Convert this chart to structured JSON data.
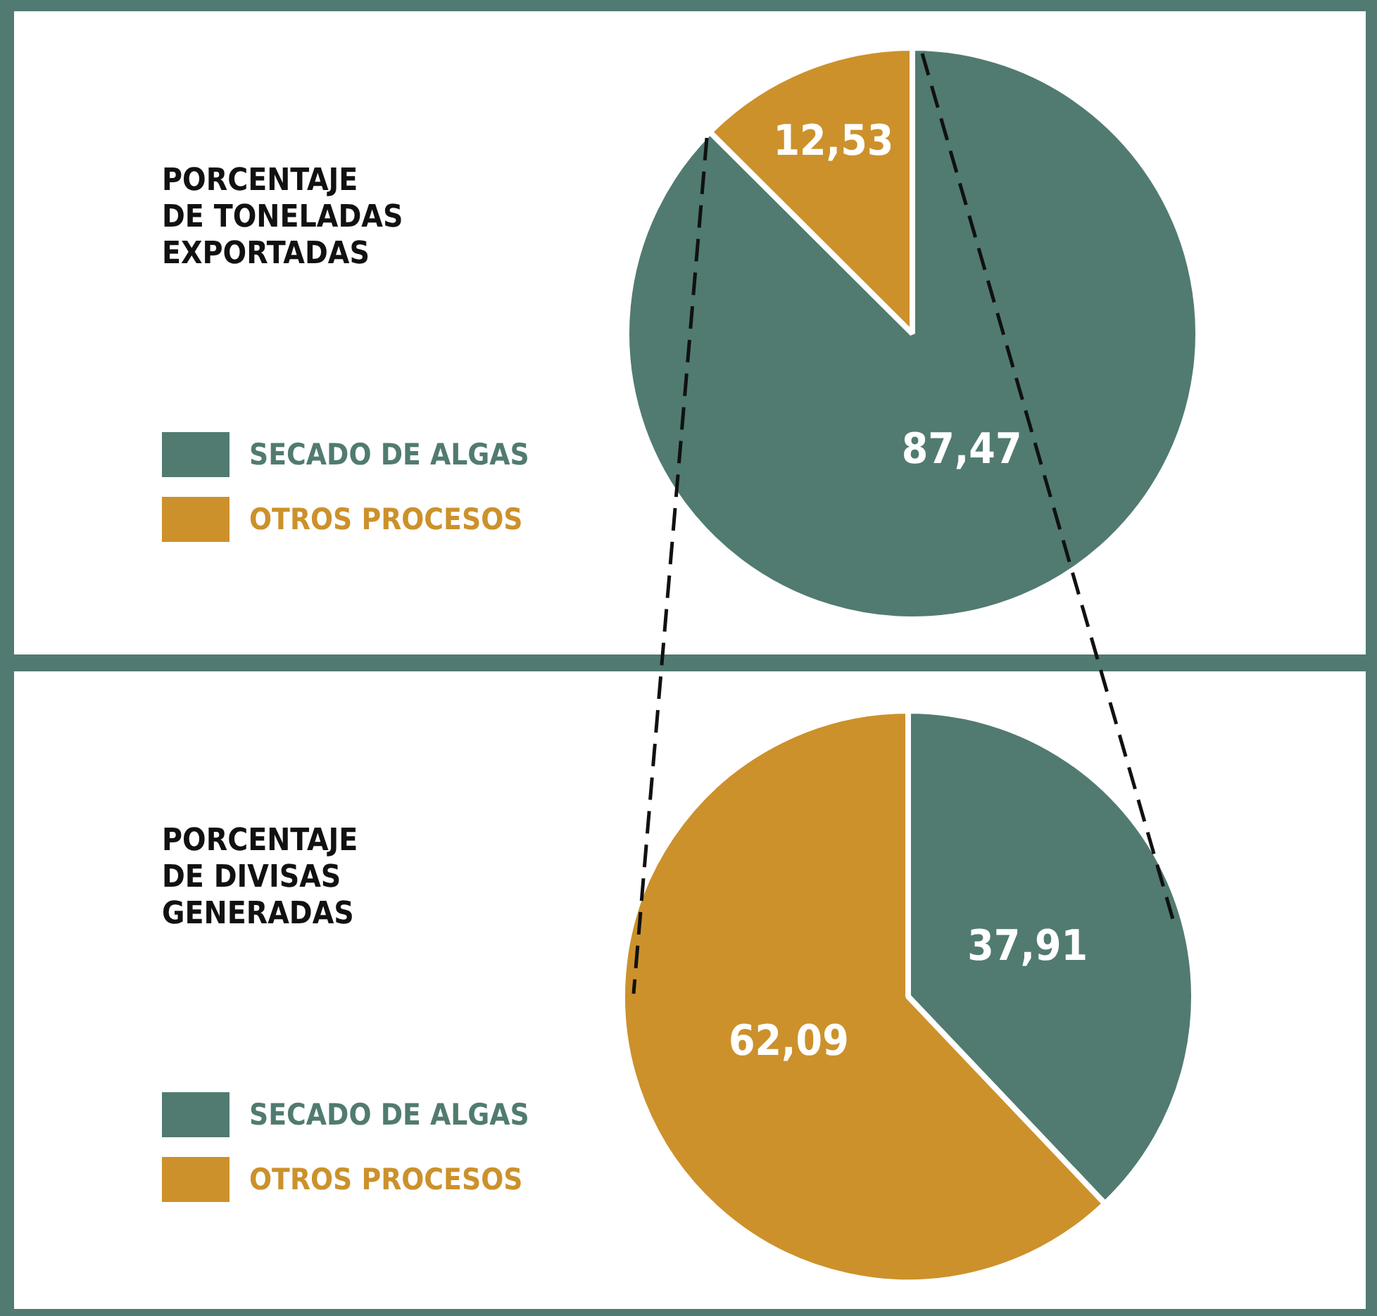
{
  "chart_data": [
    {
      "type": "pie",
      "title": "PORCENTAJE\nDE TONELADAS\nEXPORTADAS",
      "categories": [
        "SECADO DE ALGAS",
        "OTROS PROCESOS"
      ],
      "values": [
        87.47,
        12.53
      ],
      "colors": [
        "#517b70",
        "#cc912b"
      ],
      "value_labels": [
        "87,47",
        "12,53"
      ],
      "legend": "left"
    },
    {
      "type": "pie",
      "title": "PORCENTAJE\nDE DIVISAS\nGENERADAS",
      "categories": [
        "SECADO DE ALGAS",
        "OTROS PROCESOS"
      ],
      "values": [
        37.91,
        62.09
      ],
      "colors": [
        "#517b70",
        "#cc912b"
      ],
      "value_labels": [
        "37,91",
        "62,09"
      ],
      "legend": "left"
    }
  ]
}
